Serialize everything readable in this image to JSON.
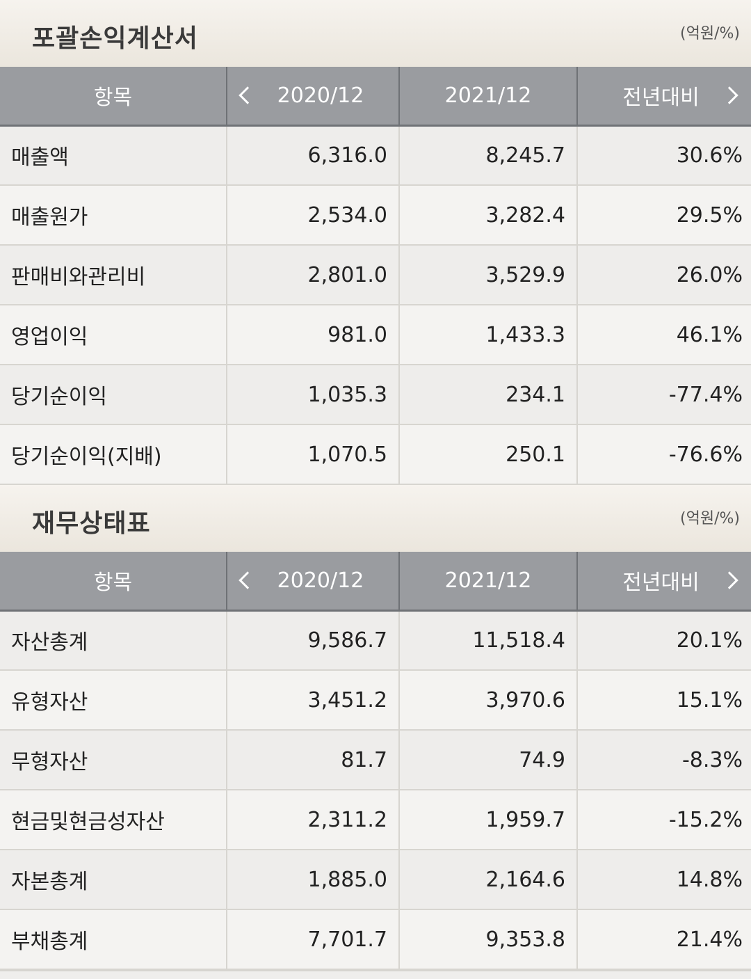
{
  "income": {
    "title": "포괄손익계산서",
    "unit": "(억원/%)",
    "headers": {
      "item": "항목",
      "prev": "2020/12",
      "curr": "2021/12",
      "yoy": "전년대비"
    },
    "rows": [
      {
        "item": "매출액",
        "prev": "6,316.0",
        "curr": "8,245.7",
        "yoy": "30.6%"
      },
      {
        "item": "매출원가",
        "prev": "2,534.0",
        "curr": "3,282.4",
        "yoy": "29.5%"
      },
      {
        "item": "판매비와관리비",
        "prev": "2,801.0",
        "curr": "3,529.9",
        "yoy": "26.0%"
      },
      {
        "item": "영업이익",
        "prev": "981.0",
        "curr": "1,433.3",
        "yoy": "46.1%"
      },
      {
        "item": "당기순이익",
        "prev": "1,035.3",
        "curr": "234.1",
        "yoy": "-77.4%"
      },
      {
        "item": "당기순이익(지배)",
        "prev": "1,070.5",
        "curr": "250.1",
        "yoy": "-76.6%"
      }
    ]
  },
  "balance": {
    "title": "재무상태표",
    "unit": "(억원/%)",
    "headers": {
      "item": "항목",
      "prev": "2020/12",
      "curr": "2021/12",
      "yoy": "전년대비"
    },
    "rows": [
      {
        "item": "자산총계",
        "prev": "9,586.7",
        "curr": "11,518.4",
        "yoy": "20.1%"
      },
      {
        "item": "유형자산",
        "prev": "3,451.2",
        "curr": "3,970.6",
        "yoy": "15.1%"
      },
      {
        "item": "무형자산",
        "prev": "81.7",
        "curr": "74.9",
        "yoy": "-8.3%"
      },
      {
        "item": "현금및현금성자산",
        "prev": "2,311.2",
        "curr": "1,959.7",
        "yoy": "-15.2%"
      },
      {
        "item": "자본총계",
        "prev": "1,885.0",
        "curr": "2,164.6",
        "yoy": "14.8%"
      },
      {
        "item": "부채총계",
        "prev": "7,701.7",
        "curr": "9,353.8",
        "yoy": "21.4%"
      }
    ]
  },
  "colors": {
    "negative": "#d1392f",
    "header_bg": "#9a9ca0"
  },
  "icons": {
    "prev": "chevron-left-icon",
    "next": "chevron-right-icon"
  }
}
